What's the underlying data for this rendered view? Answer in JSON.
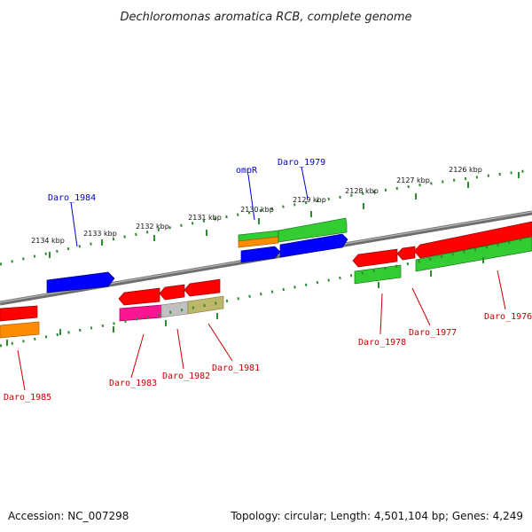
{
  "title": "Dechloromonas aromatica RCB, complete genome",
  "accession": "Accession: NC_007298",
  "topology": "Topology: circular; Length: 4,501,104 bp; Genes: 4,249",
  "colors": {
    "backbone": "#808080",
    "tick": "#2e8b2e",
    "red": "#ff0000",
    "blue": "#0000ff",
    "green": "#33cc33",
    "orange": "#ff8c00",
    "magenta": "#ff1493",
    "grey": "#c0c0c0",
    "olive": "#bdb76b",
    "top_label": "#0000cc",
    "bottom_label": "#cc0000"
  },
  "kbp_labels": [
    "2134 kbp",
    "2133 kbp",
    "2132 kbp",
    "2131 kbp",
    "2130 kbp",
    "2129 kbp",
    "2128 kbp",
    "2127 kbp",
    "2126 kbp"
  ],
  "top_genes": [
    "Daro_1984",
    "ompR",
    "Daro_1979"
  ],
  "bottom_genes": [
    "Daro_1985",
    "Daro_1983",
    "Daro_1982",
    "Daro_1981",
    "Daro_1978",
    "Daro_1977",
    "Daro_1976"
  ]
}
